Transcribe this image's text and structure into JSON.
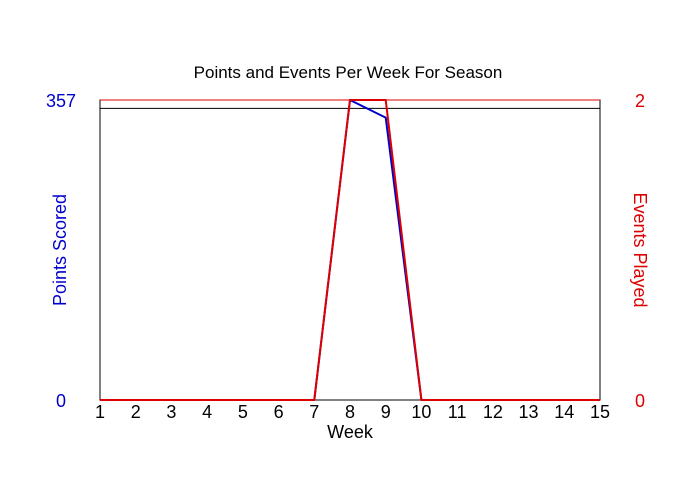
{
  "chart_data": {
    "type": "line",
    "title": "Points and Events Per Week For Season",
    "xlabel": "Week",
    "x": [
      1,
      2,
      3,
      4,
      5,
      6,
      7,
      8,
      9,
      10,
      11,
      12,
      13,
      14,
      15
    ],
    "x_tick_labels": [
      "1",
      "2",
      "3",
      "4",
      "5",
      "6",
      "7",
      "8",
      "9",
      "10",
      "11",
      "12",
      "13",
      "14",
      "15"
    ],
    "y_left": {
      "label": "Points Scored",
      "range": [
        0,
        357
      ],
      "tick_labels": [
        "0",
        "357"
      ],
      "color": "#0000cc"
    },
    "y_right": {
      "label": "Events Played",
      "range": [
        0,
        2
      ],
      "tick_labels": [
        "0",
        "2"
      ],
      "color": "#dd0000"
    },
    "series": [
      {
        "name": "Points Scored",
        "axis": "left",
        "color": "#0000cc",
        "values": [
          0,
          0,
          0,
          0,
          0,
          0,
          0,
          357,
          336,
          0,
          0,
          0,
          0,
          0,
          0
        ]
      },
      {
        "name": "Events Played",
        "axis": "right",
        "color": "#dd0000",
        "values": [
          0,
          0,
          0,
          0,
          0,
          0,
          0,
          2,
          2,
          0,
          0,
          0,
          0,
          0,
          0
        ]
      }
    ],
    "reference_lines": [
      {
        "axis": "left",
        "value": 347,
        "color": "#000000"
      },
      {
        "axis": "left",
        "value": 357,
        "color": "#dd0000"
      }
    ],
    "grid": false,
    "legend": "none"
  }
}
